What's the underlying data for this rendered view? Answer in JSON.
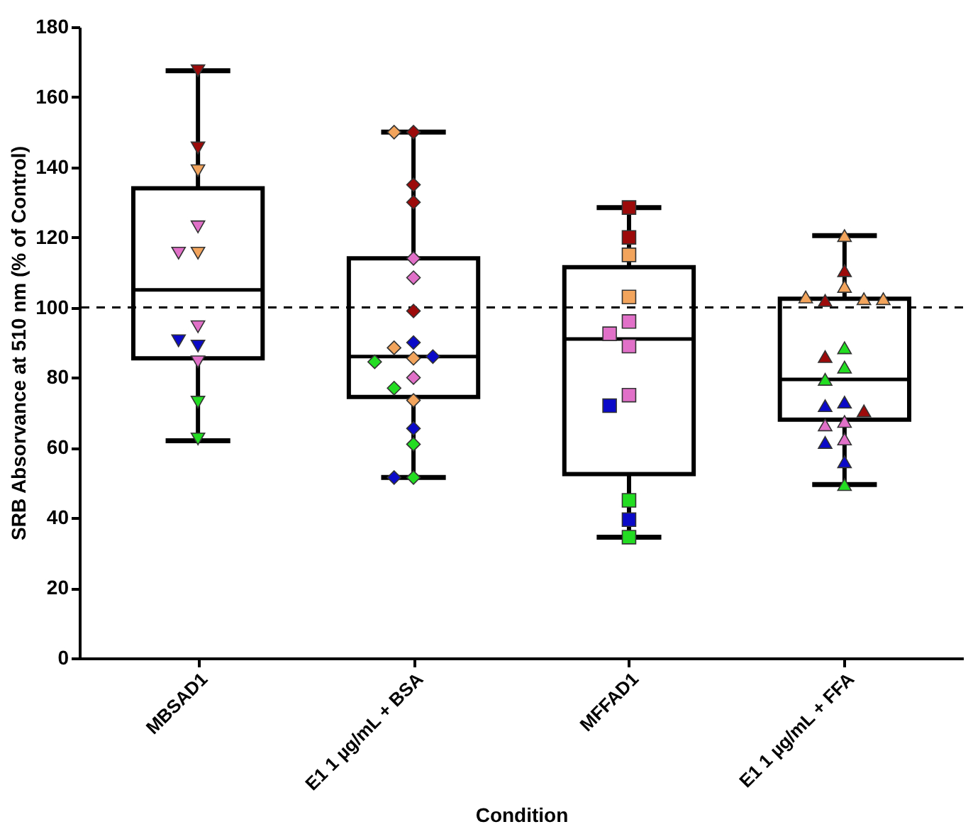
{
  "chart_data": {
    "type": "box",
    "xlabel": "Condition",
    "ylabel": "SRB Absorvance at 510 nm (% of Control)",
    "categories": [
      "MBSAD1",
      "E1 1 µg/mL + BSA",
      "MFFAD1",
      "E1 1 µg/mL + FFA"
    ],
    "boxes": [
      {
        "low": 62,
        "q1": 85.5,
        "median": 105,
        "q3": 134,
        "high": 167.5
      },
      {
        "low": 51.5,
        "q1": 74.5,
        "median": 86,
        "q3": 114,
        "high": 150
      },
      {
        "low": 34.5,
        "q1": 52.5,
        "median": 91,
        "q3": 111.5,
        "high": 128.5
      },
      {
        "low": 49.5,
        "q1": 68,
        "median": 79.5,
        "q3": 102.5,
        "high": 120.5
      }
    ],
    "ylim": [
      0,
      180
    ],
    "yticks": [
      0,
      20,
      40,
      60,
      80,
      100,
      120,
      140,
      160,
      180
    ],
    "grid": false,
    "ref_lines": [
      {
        "axis": "y",
        "value": 100,
        "line_style": "dashed",
        "color": "#000000"
      }
    ],
    "series": [
      {
        "type": "scatter",
        "marker": "triangle-down",
        "x": [
          "MBSAD1",
          "MBSAD1",
          "MBSAD1",
          "MBSAD1",
          "MBSAD1",
          "MBSAD1",
          "MBSAD1",
          "MBSAD1",
          "MBSAD1",
          "MBSAD1",
          "MBSAD1",
          "MBSAD1"
        ],
        "values": [
          167.5,
          145.5,
          139,
          123,
          115.5,
          115.5,
          94.5,
          90.5,
          89,
          84.5,
          73,
          62.5
        ],
        "colors": [
          "#9c0a0a",
          "#9c0a0a",
          "#f2a45c",
          "#e070c8",
          "#f2a45c",
          "#e070c8",
          "#e070c8",
          "#0a0ac8",
          "#0a0ac8",
          "#e070c8",
          "#22dd22",
          "#22dd22"
        ]
      },
      {
        "type": "scatter",
        "marker": "diamond",
        "x": [
          "E1 1 µg/mL + BSA",
          "E1 1 µg/mL + BSA",
          "E1 1 µg/mL + BSA",
          "E1 1 µg/mL + BSA",
          "E1 1 µg/mL + BSA",
          "E1 1 µg/mL + BSA",
          "E1 1 µg/mL + BSA",
          "E1 1 µg/mL + BSA",
          "E1 1 µg/mL + BSA",
          "E1 1 µg/mL + BSA",
          "E1 1 µg/mL + BSA",
          "E1 1 µg/mL + BSA",
          "E1 1 µg/mL + BSA",
          "E1 1 µg/mL + BSA",
          "E1 1 µg/mL + BSA",
          "E1 1 µg/mL + BSA",
          "E1 1 µg/mL + BSA",
          "E1 1 µg/mL + BSA",
          "E1 1 µg/mL + BSA"
        ],
        "values": [
          150,
          150,
          135,
          130,
          114,
          108.5,
          99,
          90,
          88.5,
          86,
          85.5,
          84.5,
          80,
          77,
          73.5,
          65.5,
          61,
          51.5,
          51.5
        ],
        "colors": [
          "#9c0a0a",
          "#f2a45c",
          "#9c0a0a",
          "#9c0a0a",
          "#e070c8",
          "#e070c8",
          "#9c0a0a",
          "#0a0ac8",
          "#f2a45c",
          "#0a0ac8",
          "#f2a45c",
          "#22dd22",
          "#e070c8",
          "#22dd22",
          "#f2a45c",
          "#0a0ac8",
          "#22dd22",
          "#22dd22",
          "#0a0ac8"
        ]
      },
      {
        "type": "scatter",
        "marker": "square",
        "x": [
          "MFFAD1",
          "MFFAD1",
          "MFFAD1",
          "MFFAD1",
          "MFFAD1",
          "MFFAD1",
          "MFFAD1",
          "MFFAD1",
          "MFFAD1",
          "MFFAD1",
          "MFFAD1",
          "MFFAD1"
        ],
        "values": [
          128.5,
          120,
          115,
          103,
          96,
          92.5,
          89,
          75,
          72,
          45,
          39.5,
          34.5
        ],
        "colors": [
          "#9c0a0a",
          "#9c0a0a",
          "#f2a45c",
          "#f2a45c",
          "#e070c8",
          "#e070c8",
          "#e070c8",
          "#e070c8",
          "#0a0ac8",
          "#22dd22",
          "#0a0ac8",
          "#22dd22"
        ]
      },
      {
        "type": "scatter",
        "marker": "triangle",
        "x": [
          "E1 1 µg/mL + FFA",
          "E1 1 µg/mL + FFA",
          "E1 1 µg/mL + FFA",
          "E1 1 µg/mL + FFA",
          "E1 1 µg/mL + FFA",
          "E1 1 µg/mL + FFA",
          "E1 1 µg/mL + FFA",
          "E1 1 µg/mL + FFA",
          "E1 1 µg/mL + FFA",
          "E1 1 µg/mL + FFA",
          "E1 1 µg/mL + FFA",
          "E1 1 µg/mL + FFA",
          "E1 1 µg/mL + FFA",
          "E1 1 µg/mL + FFA",
          "E1 1 µg/mL + FFA",
          "E1 1 µg/mL + FFA",
          "E1 1 µg/mL + FFA",
          "E1 1 µg/mL + FFA",
          "E1 1 µg/mL + FFA",
          "E1 1 µg/mL + FFA"
        ],
        "values": [
          120.5,
          110.5,
          106,
          102,
          102.5,
          103,
          88.5,
          86,
          83,
          79.5,
          73,
          72,
          70.5,
          67.5,
          66.5,
          62.5,
          61.5,
          56,
          49.5,
          102.5
        ],
        "colors": [
          "#f2a45c",
          "#9c0a0a",
          "#f2a45c",
          "#9c0a0a",
          "#f2a45c",
          "#f2a45c",
          "#22dd22",
          "#9c0a0a",
          "#22dd22",
          "#22dd22",
          "#0a0ac8",
          "#0a0ac8",
          "#9c0a0a",
          "#e070c8",
          "#e070c8",
          "#e070c8",
          "#0a0ac8",
          "#0a0ac8",
          "#22dd22",
          "#f2a45c"
        ]
      }
    ]
  }
}
